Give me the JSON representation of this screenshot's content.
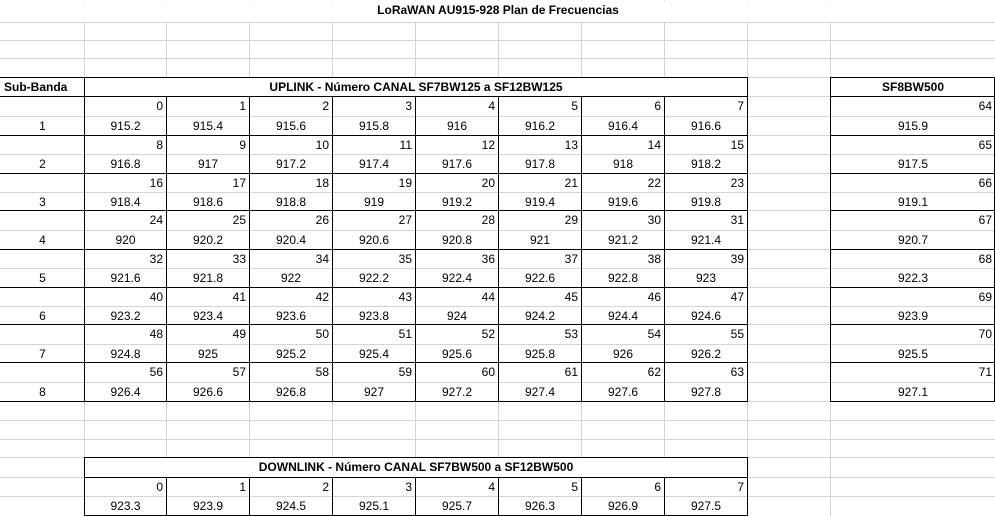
{
  "title": "LoRaWAN AU915-928 Plan de Frecuencias",
  "uplink": {
    "subband_header": "Sub-Banda",
    "header": "UPLINK - Número CANAL SF7BW125 a SF12BW125",
    "rows": [
      {
        "subband": "1",
        "channels": [
          "0",
          "1",
          "2",
          "3",
          "4",
          "5",
          "6",
          "7"
        ],
        "freqs": [
          "915.2",
          "915.4",
          "915.6",
          "915.8",
          "916",
          "916.2",
          "916.4",
          "916.6"
        ]
      },
      {
        "subband": "2",
        "channels": [
          "8",
          "9",
          "10",
          "11",
          "12",
          "13",
          "14",
          "15"
        ],
        "freqs": [
          "916.8",
          "917",
          "917.2",
          "917.4",
          "917.6",
          "917.8",
          "918",
          "918.2"
        ]
      },
      {
        "subband": "3",
        "channels": [
          "16",
          "17",
          "18",
          "19",
          "20",
          "21",
          "22",
          "23"
        ],
        "freqs": [
          "918.4",
          "918.6",
          "918.8",
          "919",
          "919.2",
          "919.4",
          "919.6",
          "919.8"
        ]
      },
      {
        "subband": "4",
        "channels": [
          "24",
          "25",
          "26",
          "27",
          "28",
          "29",
          "30",
          "31"
        ],
        "freqs": [
          "920",
          "920.2",
          "920.4",
          "920.6",
          "920.8",
          "921",
          "921.2",
          "921.4"
        ]
      },
      {
        "subband": "5",
        "channels": [
          "32",
          "33",
          "34",
          "35",
          "36",
          "37",
          "38",
          "39"
        ],
        "freqs": [
          "921.6",
          "921.8",
          "922",
          "922.2",
          "922.4",
          "922.6",
          "922.8",
          "923"
        ]
      },
      {
        "subband": "6",
        "channels": [
          "40",
          "41",
          "42",
          "43",
          "44",
          "45",
          "46",
          "47"
        ],
        "freqs": [
          "923.2",
          "923.4",
          "923.6",
          "923.8",
          "924",
          "924.2",
          "924.4",
          "924.6"
        ]
      },
      {
        "subband": "7",
        "channels": [
          "48",
          "49",
          "50",
          "51",
          "52",
          "53",
          "54",
          "55"
        ],
        "freqs": [
          "924.8",
          "925",
          "925.2",
          "925.4",
          "925.6",
          "925.8",
          "926",
          "926.2"
        ]
      },
      {
        "subband": "8",
        "channels": [
          "56",
          "57",
          "58",
          "59",
          "60",
          "61",
          "62",
          "63"
        ],
        "freqs": [
          "926.4",
          "926.6",
          "926.8",
          "927",
          "927.2",
          "927.4",
          "927.6",
          "927.8"
        ]
      }
    ]
  },
  "sf8": {
    "header": "SF8BW500",
    "rows": [
      {
        "channel": "64",
        "freq": "915.9"
      },
      {
        "channel": "65",
        "freq": "917.5"
      },
      {
        "channel": "66",
        "freq": "919.1"
      },
      {
        "channel": "67",
        "freq": "920.7"
      },
      {
        "channel": "68",
        "freq": "922.3"
      },
      {
        "channel": "69",
        "freq": "923.9"
      },
      {
        "channel": "70",
        "freq": "925.5"
      },
      {
        "channel": "71",
        "freq": "927.1"
      }
    ]
  },
  "downlink": {
    "header": "DOWNLINK - Número CANAL SF7BW500 a SF12BW500",
    "channels": [
      "0",
      "1",
      "2",
      "3",
      "4",
      "5",
      "6",
      "7"
    ],
    "freqs": [
      "923.3",
      "923.9",
      "924.5",
      "925.1",
      "925.7",
      "926.3",
      "926.9",
      "927.5"
    ]
  }
}
